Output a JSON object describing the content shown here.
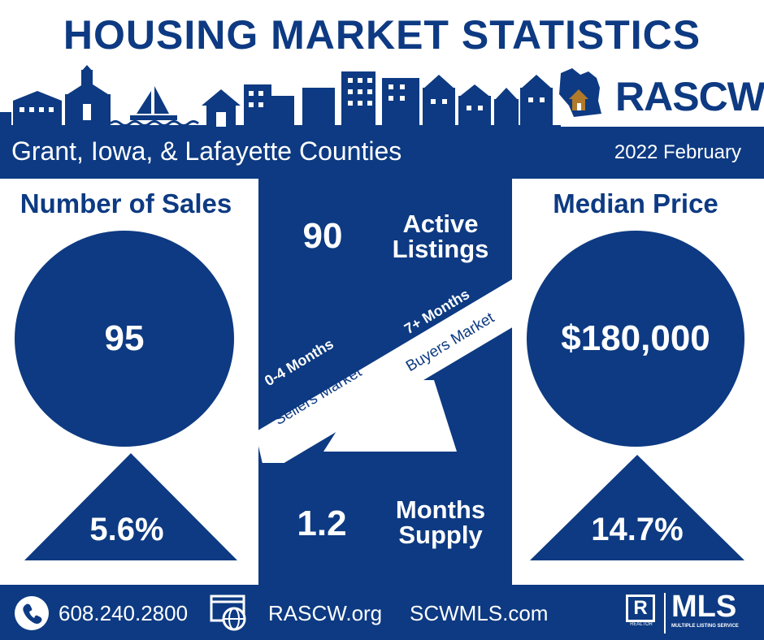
{
  "header": {
    "title": "HOUSING MARKET STATISTICS",
    "logo_text": "RASCW"
  },
  "banner": {
    "region": "Grant, Iowa, & Lafayette Counties",
    "period": "2022 February"
  },
  "sales": {
    "heading": "Number of Sales",
    "value": "95",
    "change": "5.6%"
  },
  "listings": {
    "value": "90",
    "label_line1": "Active",
    "label_line2": "Listings"
  },
  "seesaw": {
    "left_months": "0-4 Months",
    "left_market": "Sellers Market",
    "right_months": "7+ Months",
    "right_market": "Buyers Market"
  },
  "supply": {
    "value": "1.2",
    "label_line1": "Months",
    "label_line2": "Supply"
  },
  "price": {
    "heading": "Median Price",
    "value": "$180,000",
    "change": "14.7%"
  },
  "footer": {
    "phone": "608.240.2800",
    "site1": "RASCW.org",
    "site2": "SCWMLS.com",
    "realtor_mark": "REALTOR",
    "mls_label": "MLS",
    "mls_sub": "MULTIPLE LISTING SERVICE"
  },
  "colors": {
    "navy": "#0d3a82",
    "white": "#ffffff",
    "house_roof": "#b07a2a"
  },
  "icons": [
    "skyline-icon",
    "wisconsin-map-icon",
    "house-icon",
    "phone-icon",
    "web-globe-icon",
    "realtor-icon"
  ]
}
